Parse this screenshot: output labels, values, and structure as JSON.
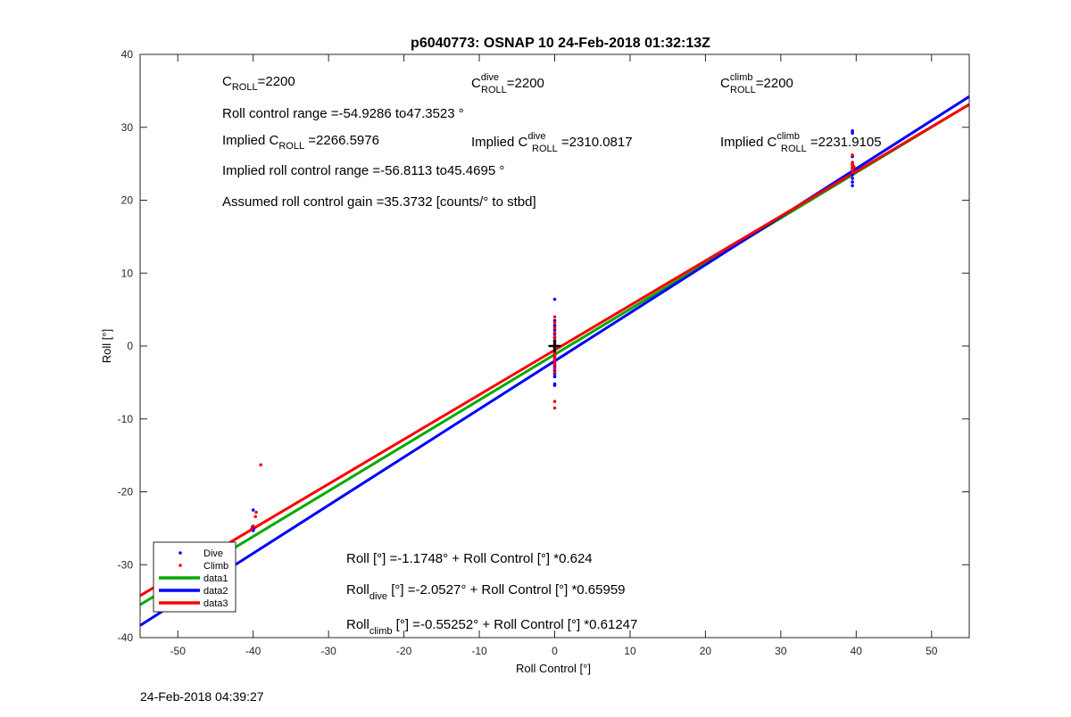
{
  "figure": {
    "timestamp": "24-Feb-2018 04:39:27"
  },
  "chart_data": {
    "type": "scatter",
    "title": "p6040773: OSNAP 10 24-Feb-2018 01:32:13Z",
    "xlabel": "Roll Control [°]",
    "ylabel": "Roll [°]",
    "xlim": [
      -55,
      55
    ],
    "ylim": [
      -40,
      40
    ],
    "xticks": [
      -50,
      -40,
      -30,
      -20,
      -10,
      0,
      10,
      20,
      30,
      40,
      50
    ],
    "yticks": [
      -40,
      -30,
      -20,
      -10,
      0,
      10,
      20,
      30,
      40
    ],
    "grid": false,
    "legend_position": "bottom-left",
    "colors": {
      "dive": "#0000ff",
      "climb": "#ff0000",
      "data1": "#00aa00",
      "data2": "#0000ff",
      "data3": "#ff0000",
      "marker": "#000000"
    },
    "annotations": {
      "c_roll": {
        "base": "C",
        "sub": "ROLL",
        "rest": "=2200"
      },
      "c_roll_dive": {
        "base": "C",
        "sup": "dive",
        "sub": "ROLL",
        "rest": "=2200"
      },
      "c_roll_climb": {
        "base": "C",
        "sup": "climb",
        "sub": "ROLL",
        "rest": "=2200"
      },
      "range": "Roll control range =-54.9286 to47.3523 °",
      "implied_c_roll": {
        "pre": "Implied C",
        "sub": "ROLL",
        "rest": " =2266.5976"
      },
      "implied_c_dive": {
        "pre": "Implied C",
        "sup": "dive",
        "sub": "ROLL",
        "rest": " =2310.0817"
      },
      "implied_c_climb": {
        "pre": "Implied C",
        "sup": "climb",
        "sub": "ROLL",
        "rest": " =2231.9105"
      },
      "implied_range": "Implied roll control range =-56.8113 to45.4695 °",
      "gain": "Assumed roll control gain =35.3732 [counts/° to stbd]",
      "fit_all": "Roll [°] =-1.1748° + Roll Control [°] *0.624",
      "fit_dive": {
        "pre": "Roll",
        "sub": "dive",
        "rest": " [°] =-2.0527° + Roll Control [°] *0.65959"
      },
      "fit_climb": {
        "pre": "Roll",
        "sub": "climb",
        "rest": " [°] =-0.55252° + Roll Control [°] *0.61247"
      }
    },
    "series": [
      {
        "name": "Dive",
        "kind": "points",
        "x": [
          -40,
          -39.9,
          -40.1,
          -40,
          0,
          0,
          0,
          0,
          0,
          0,
          0,
          0,
          0,
          0,
          0,
          0,
          0,
          0,
          0,
          0,
          0,
          0,
          0,
          0,
          0,
          0,
          39.5,
          39.5,
          39.5,
          39.5,
          39.5,
          39.5,
          39.5,
          39.5,
          39.5,
          39.5,
          39.7,
          39.3
        ],
        "y": [
          -22.5,
          -25.0,
          -24.8,
          -25.3,
          6.4,
          3.5,
          2.8,
          2.2,
          1.6,
          1.1,
          0.6,
          0.2,
          -0.2,
          -0.6,
          -1.0,
          -1.4,
          -1.8,
          -2.2,
          -2.6,
          -3.0,
          -3.4,
          -3.8,
          -4.2,
          -5.2,
          -5.4,
          -2.8,
          29.5,
          29.2,
          26.0,
          25.0,
          24.5,
          24.0,
          23.5,
          23.0,
          22.5,
          22.0,
          24.2,
          23.8
        ]
      },
      {
        "name": "Climb",
        "kind": "points",
        "x": [
          -39,
          -39.6,
          -39.7,
          -40,
          -40.2,
          0,
          0,
          0,
          0,
          0,
          0,
          0,
          0,
          0,
          0,
          0,
          0,
          0,
          0,
          0,
          0,
          0,
          0,
          39.5,
          39.5,
          39.5,
          39.5,
          39.5,
          39.5,
          39.7
        ],
        "y": [
          -16.3,
          -22.8,
          -23.4,
          -24.7,
          -25.1,
          4.0,
          3.2,
          2.5,
          1.8,
          1.2,
          0.7,
          0.3,
          -0.1,
          -0.5,
          -0.9,
          -1.3,
          -1.7,
          -2.1,
          -2.5,
          -3.0,
          -3.6,
          -7.6,
          -8.5,
          26.2,
          25.2,
          24.8,
          24.5,
          24.2,
          23.8,
          24.6
        ]
      },
      {
        "name": "data1",
        "kind": "line",
        "x": [
          -55,
          55
        ],
        "y": [
          -35.49,
          33.15
        ]
      },
      {
        "name": "data2",
        "kind": "line",
        "x": [
          -55,
          55
        ],
        "y": [
          -38.33,
          34.22
        ]
      },
      {
        "name": "data3",
        "kind": "line",
        "x": [
          -55,
          55
        ],
        "y": [
          -34.24,
          33.13
        ]
      },
      {
        "name": "",
        "kind": "marker",
        "x": [
          0
        ],
        "y": [
          0
        ]
      }
    ]
  }
}
